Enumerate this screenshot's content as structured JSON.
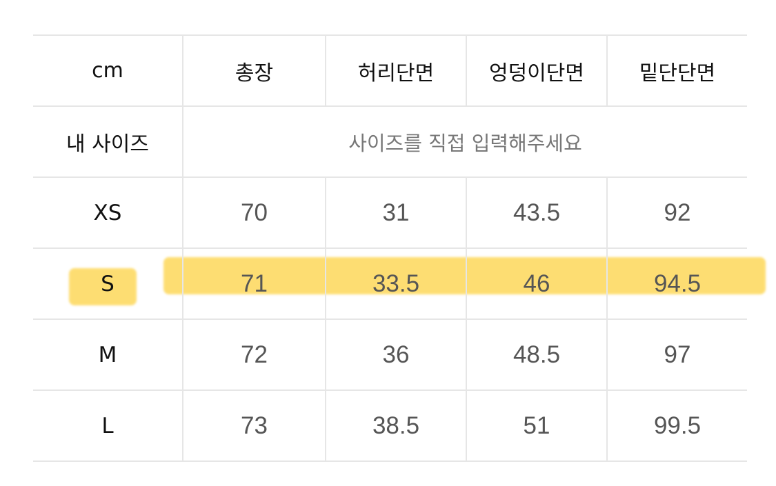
{
  "table": {
    "header": [
      "cm",
      "총장",
      "허리단면",
      "엉덩이단면",
      "밑단단면"
    ],
    "my_size": {
      "label": "내 사이즈",
      "placeholder": "사이즈를 직접 입력해주세요"
    },
    "rows": [
      {
        "size": "XS",
        "values": [
          "70",
          "31",
          "43.5",
          "92"
        ]
      },
      {
        "size": "S",
        "values": [
          "71",
          "33.5",
          "46",
          "94.5"
        ],
        "highlighted": true
      },
      {
        "size": "M",
        "values": [
          "72",
          "36",
          "48.5",
          "97"
        ]
      },
      {
        "size": "L",
        "values": [
          "73",
          "38.5",
          "51",
          "99.5"
        ]
      }
    ]
  },
  "colors": {
    "highlight": "#fdd54f",
    "border": "#e6e6e6",
    "value_text": "#555555"
  }
}
